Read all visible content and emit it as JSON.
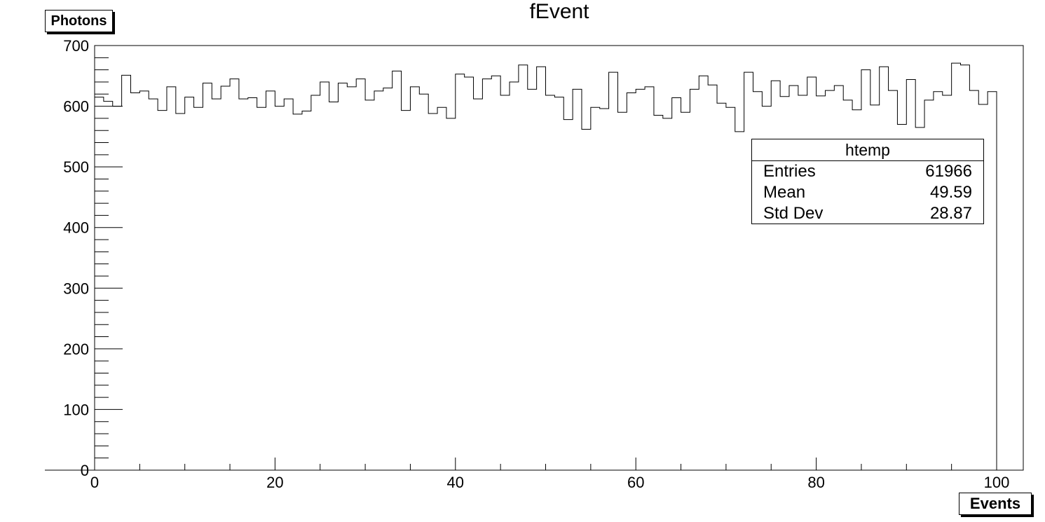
{
  "chart_data": {
    "type": "bar",
    "title": "fEvent",
    "xlabel": "Events",
    "ylabel": "Photons",
    "xlim": [
      0,
      100
    ],
    "ylim": [
      0,
      700
    ],
    "bin_width": 1,
    "x_ticks": [
      0,
      20,
      40,
      60,
      80,
      100
    ],
    "y_ticks": [
      0,
      100,
      200,
      300,
      400,
      500,
      600,
      700
    ],
    "values": [
      615,
      608,
      600,
      651,
      622,
      625,
      612,
      593,
      632,
      588,
      615,
      598,
      638,
      612,
      633,
      645,
      612,
      614,
      598,
      625,
      600,
      612,
      587,
      592,
      618,
      640,
      607,
      638,
      632,
      645,
      610,
      625,
      630,
      658,
      593,
      632,
      620,
      588,
      598,
      580,
      653,
      648,
      612,
      645,
      650,
      618,
      640,
      668,
      628,
      665,
      618,
      615,
      578,
      628,
      562,
      598,
      596,
      656,
      590,
      622,
      628,
      632,
      585,
      580,
      614,
      590,
      628,
      650,
      635,
      605,
      598,
      558,
      656,
      624,
      600,
      642,
      616,
      634,
      618,
      648,
      617,
      626,
      634,
      610,
      594,
      660,
      602,
      665,
      626,
      570,
      644,
      565,
      610,
      624,
      618,
      671,
      668,
      626,
      603,
      624
    ],
    "stats": {
      "name": "htemp",
      "rows": [
        {
          "label": "Entries",
          "value": "61966"
        },
        {
          "label": "Mean",
          "value": "49.59"
        },
        {
          "label": "Std Dev",
          "value": "28.87"
        }
      ]
    }
  }
}
